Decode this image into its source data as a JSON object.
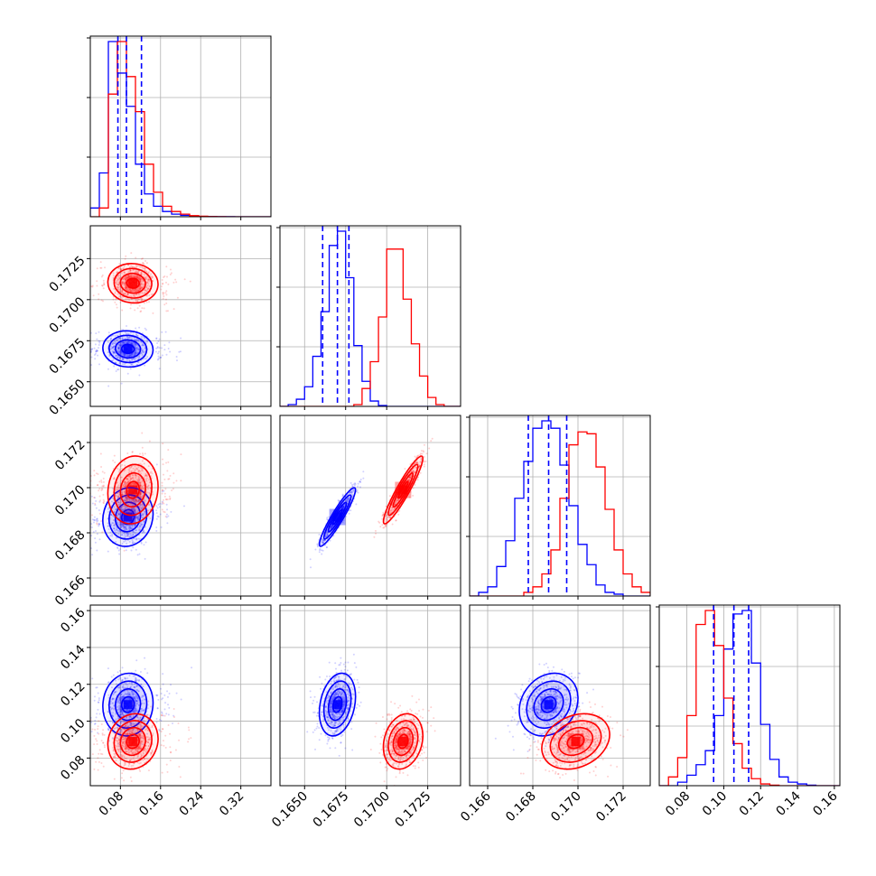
{
  "chart_data": {
    "type": "corner",
    "grid": true,
    "legend": "none",
    "n_params": 4,
    "colors": {
      "series_a": "#0000ff",
      "series_b": "#ff0000"
    },
    "axes": [
      {
        "range": [
          0.02,
          0.38
        ],
        "ticks": [
          "0.08",
          "0.16",
          "0.24",
          "0.32"
        ],
        "tick_values": [
          0.08,
          0.16,
          0.24,
          0.32
        ]
      },
      {
        "range": [
          0.1635,
          0.1745
        ],
        "ticks": [
          "0.1650",
          "0.1675",
          "0.1700",
          "0.1725"
        ],
        "tick_values": [
          0.165,
          0.1675,
          0.17,
          0.1725
        ]
      },
      {
        "range": [
          0.1652,
          0.1732
        ],
        "ticks": [
          "0.166",
          "0.168",
          "0.170",
          "0.172"
        ],
        "tick_values": [
          0.166,
          0.168,
          0.17,
          0.172
        ]
      },
      {
        "range": [
          0.065,
          0.163
        ],
        "ticks": [
          "0.08",
          "0.10",
          "0.12",
          "0.14",
          "0.16"
        ],
        "tick_values": [
          0.08,
          0.1,
          0.12,
          0.14,
          0.16
        ]
      }
    ],
    "quantiles_series_a": [
      [
        0.075,
        0.092,
        0.122
      ],
      [
        0.1661,
        0.167,
        0.1677
      ],
      [
        0.1678,
        0.1687,
        0.1695
      ],
      [
        0.0945,
        0.1055,
        0.1135
      ]
    ],
    "series": [
      {
        "name": "",
        "color": "#0000ff",
        "means": [
          0.095,
          0.167,
          0.1687,
          0.109
        ],
        "sds": [
          0.025,
          0.00055,
          0.00065,
          0.0085
        ],
        "hist": [
          {
            "edges": [
              0.02,
              0.038,
              0.056,
              0.074,
              0.092,
              0.11,
              0.128,
              0.146,
              0.164,
              0.182,
              0.2,
              0.218,
              0.236,
              0.254,
              0.272,
              0.29,
              0.308,
              0.326,
              0.344,
              0.362,
              0.38
            ],
            "counts": [
              5,
              25,
              100,
              82,
              63,
              30,
              13,
              6,
              3,
              1.5,
              0.8,
              0.4,
              0.2,
              0.1,
              0.05,
              0.02,
              0.01,
              0,
              0,
              0
            ]
          },
          {
            "edges": [
              0.1635,
              0.164,
              0.1645,
              0.165,
              0.1655,
              0.166,
              0.1665,
              0.167,
              0.1675,
              0.168,
              0.1685,
              0.169,
              0.1695,
              0.17,
              0.1705,
              0.171,
              0.1715,
              0.172,
              0.1725,
              0.173,
              0.1735,
              0.174,
              0.1745
            ],
            "counts": [
              0,
              1,
              4,
              11,
              28,
              53,
              90,
              98,
              72,
              34,
              14,
              3,
              0.5,
              0,
              0,
              0,
              0,
              0,
              0,
              0,
              0,
              0
            ]
          },
          {
            "edges": [
              0.1652,
              0.1656,
              0.166,
              0.1664,
              0.1668,
              0.1672,
              0.1676,
              0.168,
              0.1684,
              0.1688,
              0.1692,
              0.1696,
              0.17,
              0.1704,
              0.1708,
              0.1712,
              0.1716,
              0.172,
              0.1724,
              0.1728,
              0.1732
            ],
            "counts": [
              0,
              2,
              5,
              16,
              30,
              53,
              73,
              91,
              95,
              91,
              71,
              49,
              28,
              17,
              6,
              2,
              1,
              0,
              0,
              0
            ]
          },
          {
            "edges": [
              0.065,
              0.07,
              0.075,
              0.08,
              0.085,
              0.09,
              0.095,
              0.1,
              0.105,
              0.11,
              0.115,
              0.12,
              0.125,
              0.13,
              0.135,
              0.14,
              0.145,
              0.15,
              0.155,
              0.16,
              0.163
            ],
            "counts": [
              0,
              0,
              2,
              6,
              12,
              20,
              40,
              78,
              98,
              100,
              70,
              35,
              15,
              5,
              2,
              1,
              0.3,
              0,
              0,
              0
            ]
          }
        ]
      },
      {
        "name": "",
        "color": "#ff0000",
        "means": [
          0.105,
          0.171,
          0.1699,
          0.089
        ],
        "sds": [
          0.025,
          0.0006,
          0.00075,
          0.0075
        ],
        "hist": [
          {
            "edges": [
              0.02,
              0.038,
              0.056,
              0.074,
              0.092,
              0.11,
              0.128,
              0.146,
              0.164,
              0.182,
              0.2,
              0.218,
              0.236,
              0.254,
              0.272,
              0.29,
              0.308,
              0.326,
              0.344,
              0.362,
              0.38
            ],
            "counts": [
              0,
              5,
              70,
              100,
              80,
              60,
              30,
              14,
              6,
              3,
              1.5,
              0.6,
              0.3,
              0.1,
              0.05,
              0,
              0,
              0,
              0,
              0
            ]
          },
          {
            "edges": [
              0.1635,
              0.164,
              0.1645,
              0.165,
              0.1655,
              0.166,
              0.1665,
              0.167,
              0.1675,
              0.168,
              0.1685,
              0.169,
              0.1695,
              0.17,
              0.1705,
              0.171,
              0.1715,
              0.172,
              0.1725,
              0.173,
              0.1735,
              0.174,
              0.1745
            ],
            "counts": [
              0,
              0,
              0,
              0,
              0,
              0,
              0,
              0,
              0,
              1,
              10,
              25,
              50,
              88,
              88,
              60,
              35,
              17,
              5,
              1,
              0,
              0
            ]
          },
          {
            "edges": [
              0.1652,
              0.1656,
              0.166,
              0.1664,
              0.1668,
              0.1672,
              0.1676,
              0.168,
              0.1684,
              0.1688,
              0.1692,
              0.1696,
              0.17,
              0.1704,
              0.1708,
              0.1712,
              0.1716,
              0.172,
              0.1724,
              0.1728,
              0.1732
            ],
            "counts": [
              0,
              0,
              0,
              0,
              0,
              0,
              2,
              5,
              12,
              25,
              53,
              82,
              89,
              88,
              70,
              47,
              25,
              12,
              5,
              2
            ]
          },
          {
            "edges": [
              0.065,
              0.07,
              0.075,
              0.08,
              0.085,
              0.09,
              0.095,
              0.1,
              0.105,
              0.11,
              0.115,
              0.12,
              0.125,
              0.13,
              0.135,
              0.14,
              0.145,
              0.15,
              0.155,
              0.16,
              0.163
            ],
            "counts": [
              0,
              5,
              16,
              40,
              92,
              100,
              80,
              50,
              24,
              10,
              4,
              1,
              0.3,
              0,
              0,
              0,
              0,
              0,
              0,
              0
            ]
          }
        ]
      }
    ],
    "correlations": {
      "series_a": {
        "1-0": -0.05,
        "2-0": 0.1,
        "2-1": 0.93,
        "3-0": 0.05,
        "3-1": 0.25,
        "3-2": 0.2
      },
      "series_b": {
        "1-0": -0.05,
        "2-0": 0.1,
        "2-1": 0.93,
        "3-0": 0.1,
        "3-1": 0.2,
        "3-2": 0.25
      }
    }
  }
}
